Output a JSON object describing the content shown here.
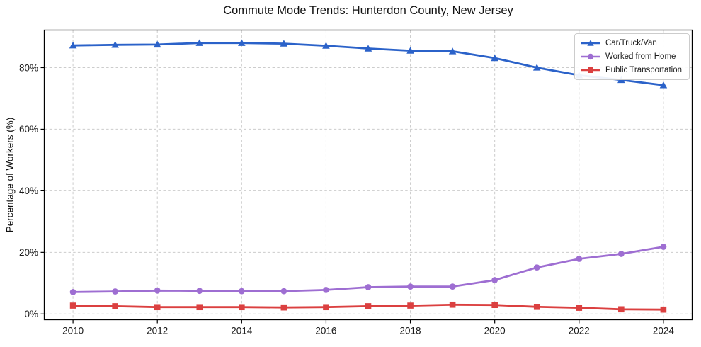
{
  "title": "Commute Mode Trends: Hunterdon County, New Jersey",
  "colors": {
    "background": "#ffffff",
    "grid": "#cccccc",
    "spine": "#000000",
    "text": "#1a1a1a",
    "legend_border": "#cccccc",
    "car_truck_van": "#2b62c9",
    "worked_from_home": "#9e6ed2",
    "public_transportation": "#db4040"
  },
  "chart_data": {
    "type": "line",
    "title": "Commute Mode Trends: Hunterdon County, New Jersey",
    "xlabel": "",
    "ylabel": "Percentage of Workers (%)",
    "x": [
      2010,
      2011,
      2012,
      2013,
      2014,
      2015,
      2016,
      2017,
      2018,
      2019,
      2020,
      2021,
      2022,
      2023,
      2024
    ],
    "series": [
      {
        "name": "Car/Truck/Van",
        "marker": "triangle",
        "color": "#2b62c9",
        "values": [
          87.2,
          87.4,
          87.5,
          88.0,
          88.0,
          87.8,
          87.1,
          86.2,
          85.5,
          85.3,
          83.1,
          80.0,
          77.5,
          76.0,
          74.3
        ]
      },
      {
        "name": "Worked from Home",
        "marker": "circle",
        "color": "#9e6ed2",
        "values": [
          7.1,
          7.3,
          7.6,
          7.5,
          7.4,
          7.4,
          7.8,
          8.7,
          8.9,
          8.9,
          11.0,
          15.1,
          17.9,
          19.5,
          21.8
        ]
      },
      {
        "name": "Public Transportation",
        "marker": "square",
        "color": "#db4040",
        "values": [
          2.7,
          2.5,
          2.2,
          2.2,
          2.2,
          2.1,
          2.2,
          2.5,
          2.7,
          3.0,
          2.9,
          2.3,
          2.0,
          1.5,
          1.4
        ]
      }
    ],
    "xticks": [
      2010,
      2012,
      2014,
      2016,
      2018,
      2020,
      2022,
      2024
    ],
    "yticks": [
      0,
      20,
      40,
      60,
      80
    ],
    "ytick_suffix": "%",
    "xlim": [
      2009.31,
      2024.69
    ],
    "ylim": [
      -2.0,
      92.3
    ],
    "grid": true,
    "grid_style": "dashed",
    "legend_position": "upper right"
  }
}
